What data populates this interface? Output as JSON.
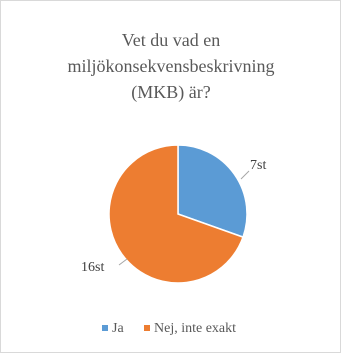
{
  "chart_data": {
    "type": "pie",
    "title_lines": [
      "Vet du vad en",
      "miljökonsekvensbeskrivning",
      "(MKB) är?"
    ],
    "categories": [
      "Ja",
      "Nej, inte exakt"
    ],
    "values": [
      7,
      16
    ],
    "data_labels": [
      "7st",
      "16st"
    ],
    "colors": [
      "#5b9bd5",
      "#ed7d31"
    ],
    "legend_position": "bottom",
    "start_angle_deg": 0,
    "direction": "clockwise"
  }
}
